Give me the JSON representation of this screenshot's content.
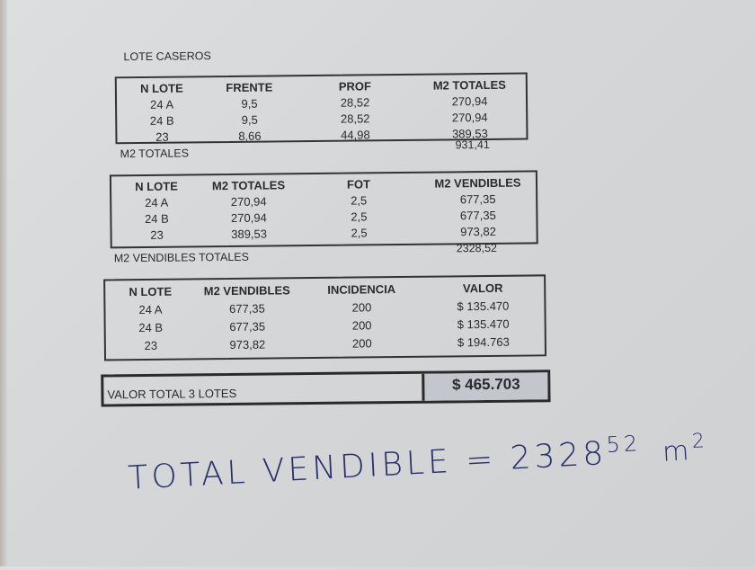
{
  "title": "LOTE CASEROS",
  "table1": {
    "headers": [
      "N LOTE",
      "FRENTE",
      "PROF",
      "M2 TOTALES"
    ],
    "rows": [
      [
        "24 A",
        "9,5",
        "28,52",
        "270,94"
      ],
      [
        "24 B",
        "9,5",
        "28,52",
        "270,94"
      ],
      [
        "23",
        "8,66",
        "44,98",
        "389,53"
      ]
    ],
    "total_label": "M2 TOTALES",
    "total_value": "931,41"
  },
  "table2": {
    "headers": [
      "N LOTE",
      "M2 TOTALES",
      "FOT",
      "M2 VENDIBLES"
    ],
    "rows": [
      [
        "24 A",
        "270,94",
        "2,5",
        "677,35"
      ],
      [
        "24 B",
        "270,94",
        "2,5",
        "677,35"
      ],
      [
        "23",
        "389,53",
        "2,5",
        "973,82"
      ]
    ],
    "total_label": "M2 VENDIBLES TOTALES",
    "total_value": "2328,52"
  },
  "table3": {
    "headers": [
      "N LOTE",
      "M2 VENDIBLES",
      "INCIDENCIA",
      "VALOR"
    ],
    "rows": [
      [
        "24 A",
        "677,35",
        "200",
        "$ 135.470"
      ],
      [
        "24 B",
        "677,35",
        "200",
        "$ 135.470"
      ],
      [
        "23",
        "973,82",
        "200",
        "$ 194.763"
      ]
    ]
  },
  "grand_total": {
    "label": "VALOR TOTAL 3 LOTES",
    "value": "$ 465.703"
  },
  "handwriting": {
    "text": "TOTAL VENDIBLE = 2328",
    "superscript": "52",
    "unit": "m",
    "unit_exp": "2"
  },
  "colors": {
    "ink": "#27306b",
    "paper": "#d6d8da",
    "total_fill": "#c3c6cc"
  }
}
